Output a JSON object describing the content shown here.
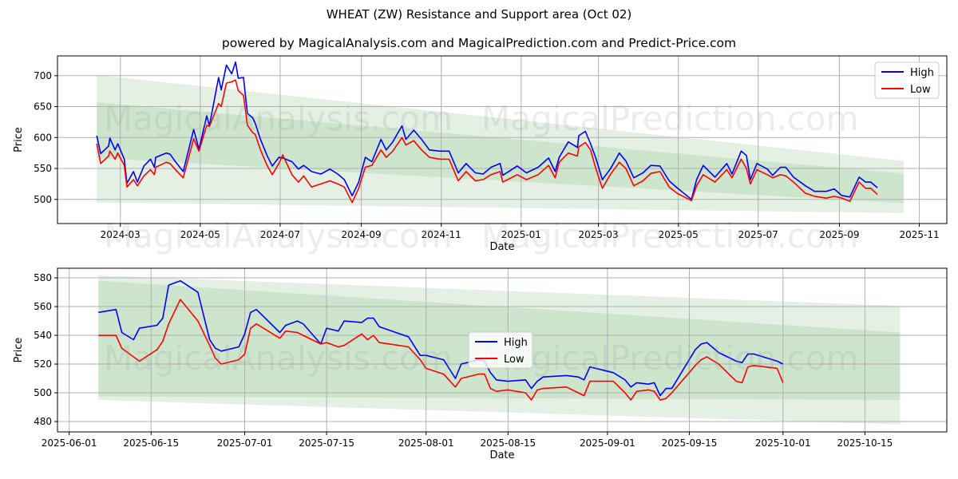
{
  "title": "WHEAT (ZW) Resistance and Support area (Oct 02)",
  "subtitle": "powered by MagicalAnalysis.com and MagicalPrediction.com and Predict-Price.com",
  "watermarks": [
    "MagicalAnalysis.com",
    "MagicalPrediction.com"
  ],
  "colors": {
    "high": "#0000ff",
    "low": "#ff0000",
    "band_outer": "#e3f0e3",
    "band_inner": "#cce5cc",
    "grid": "#b0b0b0"
  },
  "chart_data": [
    {
      "type": "line",
      "xlabel": "Date",
      "ylabel": "Price",
      "xlim": [
        "2024-01-13",
        "2025-11-22"
      ],
      "ylim": [
        461,
        732
      ],
      "grid": true,
      "legend": {
        "placement": "top-right",
        "entries": [
          "High",
          "Low"
        ]
      },
      "xticks": [
        [
          "2024-03-01",
          "2024-03"
        ],
        [
          "2024-05-01",
          "2024-05"
        ],
        [
          "2024-07-01",
          "2024-07"
        ],
        [
          "2024-09-01",
          "2024-09"
        ],
        [
          "2024-11-01",
          "2024-11"
        ],
        [
          "2025-01-01",
          "2025-01"
        ],
        [
          "2025-03-01",
          "2025-03"
        ],
        [
          "2025-05-01",
          "2025-05"
        ],
        [
          "2025-07-01",
          "2025-07"
        ],
        [
          "2025-09-01",
          "2025-09"
        ],
        [
          "2025-11-01",
          "2025-11"
        ]
      ],
      "yticks": [
        500,
        550,
        600,
        650,
        700
      ],
      "bands": {
        "x": [
          "2024-02-12",
          "2025-10-20"
        ],
        "outer_top": [
          701,
          562
        ],
        "outer_bottom": [
          495,
          478
        ],
        "inner_top": [
          657,
          542
        ],
        "inner_bottom": [
          567,
          494
        ]
      },
      "x": [
        "2024-02-12",
        "2024-02-15",
        "2024-02-21",
        "2024-02-22",
        "2024-02-26",
        "2024-02-28",
        "2024-03-04",
        "2024-03-06",
        "2024-03-11",
        "2024-03-14",
        "2024-03-19",
        "2024-03-24",
        "2024-03-27",
        "2024-03-28",
        "2024-04-05",
        "2024-04-08",
        "2024-04-12",
        "2024-04-18",
        "2024-04-26",
        "2024-04-30",
        "2024-05-06",
        "2024-05-08",
        "2024-05-15",
        "2024-05-17",
        "2024-05-21",
        "2024-05-25",
        "2024-05-28",
        "2024-05-30",
        "2024-06-03",
        "2024-06-06",
        "2024-06-10",
        "2024-06-12",
        "2024-06-16",
        "2024-06-21",
        "2024-06-25",
        "2024-06-30",
        "2024-07-03",
        "2024-07-10",
        "2024-07-15",
        "2024-07-19",
        "2024-07-25",
        "2024-08-01",
        "2024-08-08",
        "2024-08-14",
        "2024-08-19",
        "2024-08-25",
        "2024-08-30",
        "2024-09-04",
        "2024-09-09",
        "2024-09-16",
        "2024-09-20",
        "2024-09-25",
        "2024-10-02",
        "2024-10-05",
        "2024-10-11",
        "2024-10-17",
        "2024-10-23",
        "2024-10-31",
        "2024-11-07",
        "2024-11-14",
        "2024-11-20",
        "2024-11-27",
        "2024-12-03",
        "2024-12-09",
        "2024-12-16",
        "2024-12-18",
        "2024-12-29",
        "2025-01-05",
        "2025-01-14",
        "2025-01-22",
        "2025-01-27",
        "2025-01-30",
        "2025-02-06",
        "2025-02-13",
        "2025-02-14",
        "2025-02-19",
        "2025-02-23",
        "2025-02-27",
        "2025-03-04",
        "2025-03-10",
        "2025-03-17",
        "2025-03-22",
        "2025-03-28",
        "2025-04-04",
        "2025-04-10",
        "2025-04-17",
        "2025-04-24",
        "2025-04-30",
        "2025-05-11",
        "2025-05-15",
        "2025-05-20",
        "2025-05-29",
        "2025-06-07",
        "2025-06-11",
        "2025-06-18",
        "2025-06-22",
        "2025-06-25",
        "2025-06-30",
        "2025-07-08",
        "2025-07-12",
        "2025-07-18",
        "2025-07-22",
        "2025-07-28",
        "2025-08-06",
        "2025-08-13",
        "2025-08-22",
        "2025-08-28",
        "2025-09-03",
        "2025-09-09",
        "2025-09-16",
        "2025-09-21",
        "2025-09-25",
        "2025-09-30"
      ],
      "series": [
        {
          "name": "High",
          "values": [
            603,
            574,
            586,
            599,
            580,
            590,
            565,
            526,
            545,
            528,
            554,
            565,
            552,
            568,
            575,
            573,
            561,
            545,
            613,
            581,
            635,
            619,
            697,
            677,
            717,
            703,
            722,
            696,
            697,
            639,
            632,
            623,
            597,
            571,
            554,
            568,
            567,
            561,
            549,
            555,
            545,
            541,
            549,
            541,
            532,
            506,
            528,
            568,
            561,
            597,
            580,
            593,
            619,
            597,
            612,
            597,
            580,
            578,
            578,
            543,
            558,
            543,
            541,
            552,
            558,
            539,
            554,
            543,
            552,
            567,
            545,
            568,
            593,
            584,
            603,
            610,
            590,
            567,
            532,
            549,
            575,
            562,
            535,
            543,
            555,
            554,
            530,
            519,
            500,
            532,
            555,
            536,
            558,
            541,
            578,
            571,
            532,
            558,
            549,
            539,
            552,
            552,
            536,
            522,
            513,
            513,
            517,
            506,
            504,
            536,
            528,
            528,
            519
          ]
        },
        {
          "name": "Low",
          "values": [
            590,
            558,
            570,
            578,
            565,
            575,
            555,
            520,
            532,
            522,
            538,
            548,
            540,
            552,
            560,
            558,
            548,
            535,
            598,
            578,
            620,
            618,
            655,
            650,
            688,
            690,
            693,
            676,
            668,
            620,
            608,
            605,
            580,
            555,
            540,
            558,
            572,
            540,
            528,
            538,
            520,
            525,
            530,
            525,
            520,
            495,
            518,
            552,
            555,
            580,
            568,
            578,
            600,
            588,
            595,
            580,
            568,
            565,
            565,
            530,
            545,
            530,
            532,
            540,
            545,
            528,
            540,
            532,
            540,
            555,
            535,
            560,
            575,
            570,
            585,
            592,
            580,
            550,
            518,
            540,
            560,
            550,
            522,
            530,
            542,
            545,
            520,
            510,
            498,
            522,
            540,
            528,
            548,
            535,
            565,
            550,
            525,
            548,
            540,
            535,
            540,
            538,
            528,
            510,
            505,
            502,
            505,
            502,
            497,
            528,
            518,
            518,
            508
          ]
        }
      ]
    },
    {
      "type": "line",
      "xlabel": "Date",
      "ylabel": "Price",
      "xlim": [
        "2025-05-30",
        "2025-10-29"
      ],
      "ylim": [
        472.8,
        586.7
      ],
      "grid": true,
      "legend": {
        "placement": "center",
        "entries": [
          "High",
          "Low"
        ]
      },
      "xticks": [
        [
          "2025-06-01",
          "2025-06-01"
        ],
        [
          "2025-06-15",
          "2025-06-15"
        ],
        [
          "2025-07-01",
          "2025-07-01"
        ],
        [
          "2025-07-15",
          "2025-07-15"
        ],
        [
          "2025-08-01",
          "2025-08-01"
        ],
        [
          "2025-08-15",
          "2025-08-15"
        ],
        [
          "2025-09-01",
          "2025-09-01"
        ],
        [
          "2025-09-15",
          "2025-09-15"
        ],
        [
          "2025-10-01",
          "2025-10-01"
        ],
        [
          "2025-10-15",
          "2025-10-15"
        ]
      ],
      "yticks": [
        480,
        500,
        520,
        540,
        560,
        580
      ],
      "bands": {
        "x": [
          "2025-06-06",
          "2025-10-21"
        ],
        "outer_top": [
          581.7,
          560.5
        ],
        "outer_bottom": [
          495,
          478
        ],
        "inner_top": [
          578,
          542
        ],
        "inner_bottom": [
          497.5,
          495
        ]
      },
      "x": [
        "2025-06-06",
        "2025-06-09",
        "2025-06-10",
        "2025-06-12",
        "2025-06-13",
        "2025-06-16",
        "2025-06-17",
        "2025-06-18",
        "2025-06-20",
        "2025-06-23",
        "2025-06-25",
        "2025-06-26",
        "2025-06-27",
        "2025-06-30",
        "2025-07-01",
        "2025-07-02",
        "2025-07-03",
        "2025-07-07",
        "2025-07-08",
        "2025-07-10",
        "2025-07-11",
        "2025-07-14",
        "2025-07-15",
        "2025-07-17",
        "2025-07-18",
        "2025-07-21",
        "2025-07-22",
        "2025-07-23",
        "2025-07-24",
        "2025-07-29",
        "2025-07-31",
        "2025-08-01",
        "2025-08-04",
        "2025-08-06",
        "2025-08-07",
        "2025-08-10",
        "2025-08-11",
        "2025-08-12",
        "2025-08-13",
        "2025-08-15",
        "2025-08-18",
        "2025-08-19",
        "2025-08-20",
        "2025-08-21",
        "2025-08-25",
        "2025-08-27",
        "2025-08-28",
        "2025-08-29",
        "2025-09-02",
        "2025-09-04",
        "2025-09-05",
        "2025-09-06",
        "2025-09-08",
        "2025-09-09",
        "2025-09-10",
        "2025-09-11",
        "2025-09-12",
        "2025-09-16",
        "2025-09-17",
        "2025-09-18",
        "2025-09-20",
        "2025-09-23",
        "2025-09-24",
        "2025-09-25",
        "2025-09-26",
        "2025-09-30",
        "2025-10-01"
      ],
      "series": [
        {
          "name": "High",
          "values": [
            556,
            558,
            542,
            537,
            545,
            547,
            552,
            575,
            578,
            570,
            537,
            531,
            529,
            532,
            541,
            556,
            558,
            542,
            547,
            550,
            548,
            534,
            545,
            543,
            550,
            549,
            552,
            552,
            546,
            539,
            526,
            526,
            523,
            510,
            520,
            523,
            522,
            514,
            509,
            508,
            509,
            503,
            508,
            511,
            512,
            511,
            509,
            518,
            514,
            509,
            504,
            507,
            506,
            507,
            498,
            503,
            503,
            530,
            534,
            535,
            528,
            522,
            521,
            527,
            527,
            522,
            520
          ]
        },
        {
          "name": "Low",
          "values": [
            540,
            540,
            531,
            525,
            522,
            530,
            536,
            548,
            565,
            550,
            533,
            524,
            520,
            523,
            527,
            545,
            548,
            538,
            543,
            542,
            540,
            534,
            535,
            532,
            533,
            541,
            537,
            540,
            535,
            532,
            523,
            517,
            513,
            504,
            510,
            513,
            513,
            503,
            501,
            502,
            500,
            495,
            502,
            503,
            504,
            500,
            498,
            508,
            508,
            500,
            495,
            501,
            502,
            501,
            495,
            496,
            500,
            519,
            523,
            525,
            520,
            508,
            507,
            518,
            519,
            517,
            507
          ]
        }
      ]
    }
  ]
}
